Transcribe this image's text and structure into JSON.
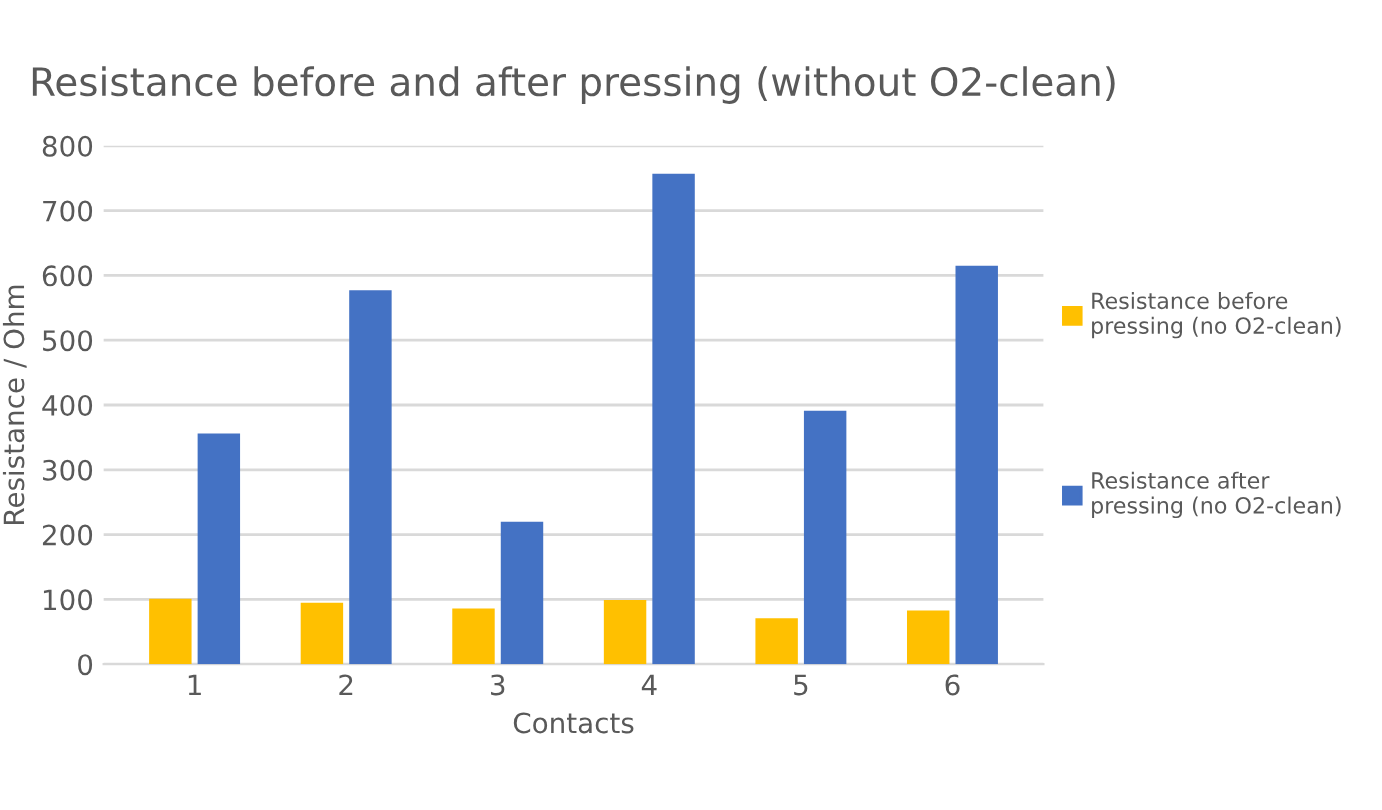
{
  "chart_data": {
    "type": "bar",
    "title": "Resistance before and after pressing (without O2-clean)",
    "xlabel": "Contacts",
    "ylabel": "Resistance / Ohm",
    "categories": [
      "1",
      "2",
      "3",
      "4",
      "5",
      "6"
    ],
    "series": [
      {
        "name": "Resistance before\npressing (no O2-clean)",
        "color": "#ffc000",
        "values": [
          101,
          95,
          86,
          99,
          71,
          83
        ]
      },
      {
        "name": "Resistance after\npressing (no O2-clean)",
        "color": "#4472c4",
        "values": [
          356,
          577,
          220,
          757,
          391,
          615
        ]
      }
    ],
    "ylim": [
      0,
      800
    ],
    "yticks": [
      0,
      100,
      200,
      300,
      400,
      500,
      600,
      700,
      800
    ],
    "grid": "y",
    "legend": "right"
  }
}
